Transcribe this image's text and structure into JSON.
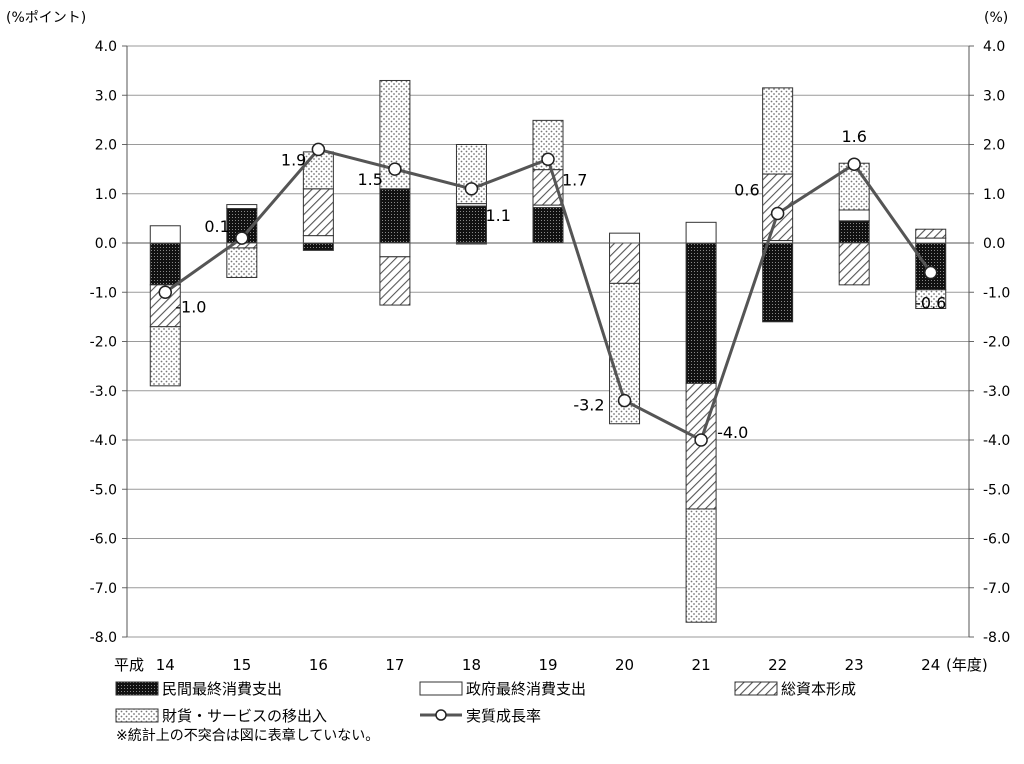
{
  "chart_data": {
    "type": "bar",
    "stacked": true,
    "left_unit": "(%ポイント)",
    "right_unit": "(%)",
    "x_prefix": "平成",
    "x_suffix": "(年度)",
    "categories": [
      "14",
      "15",
      "16",
      "17",
      "18",
      "19",
      "20",
      "21",
      "22",
      "23",
      "24"
    ],
    "ylim": [
      -8.0,
      4.0
    ],
    "ytick_step": 1.0,
    "yticks": [
      "4.0",
      "3.0",
      "2.0",
      "1.0",
      "0.0",
      "-1.0",
      "-2.0",
      "-3.0",
      "-4.0",
      "-5.0",
      "-6.0",
      "-7.0",
      "-8.0"
    ],
    "grid": true,
    "series": [
      {
        "name": "民間最終消費支出",
        "pattern": "dark-dots",
        "values": [
          -0.85,
          0.7,
          -0.15,
          1.1,
          0.75,
          0.72,
          0.0,
          -2.85,
          -1.6,
          0.45,
          -0.95
        ]
      },
      {
        "name": "政府最終消費支出",
        "pattern": "white",
        "values": [
          0.35,
          0.08,
          0.15,
          -0.28,
          0.05,
          0.05,
          0.2,
          0.42,
          0.05,
          0.22,
          0.1
        ]
      },
      {
        "name": "総資本形成",
        "pattern": "hatch",
        "values": [
          -0.85,
          -0.1,
          0.95,
          -0.98,
          -0.02,
          0.72,
          -0.82,
          -2.55,
          1.35,
          -0.85,
          0.18
        ]
      },
      {
        "name": "財貨・サービスの移出入",
        "pattern": "light-dots",
        "values": [
          -1.2,
          -0.6,
          0.75,
          2.2,
          1.2,
          1.0,
          -2.85,
          -2.3,
          1.75,
          0.95,
          -0.38
        ]
      }
    ],
    "line": {
      "name": "実質成長率",
      "values": [
        -1.0,
        0.1,
        1.9,
        1.5,
        1.1,
        1.7,
        -3.2,
        -4.0,
        0.6,
        1.6,
        -0.6
      ],
      "labels": [
        "-1.0",
        "0.1",
        "1.9",
        "1.5",
        "1.1",
        "1.7",
        "-3.2",
        "-4.0",
        "0.6",
        "1.6",
        "-0.6"
      ],
      "color": "#555555"
    },
    "note": "※統計上の不突合は図に表章していない。"
  }
}
